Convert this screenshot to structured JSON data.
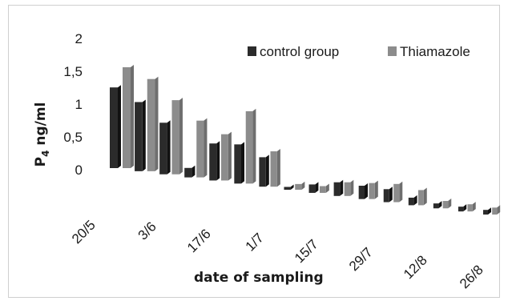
{
  "chart_data": {
    "type": "bar",
    "title": "",
    "xlabel": "date of sampling",
    "ylabel": "P",
    "ylabel_sub": "4",
    "ylabel_unit": " ng/ml",
    "ylim": [
      0,
      2
    ],
    "yticks": [
      "2",
      "1,5",
      "1",
      "0,5",
      "0"
    ],
    "x_tick_labels": [
      "20/5",
      "3/6",
      "17/6",
      "1/7",
      "15/7",
      "29/7",
      "12/8",
      "26/8"
    ],
    "legend_position": "top-right",
    "series": [
      {
        "name": "control group",
        "color": "#2b2b2b",
        "values": [
          1.2,
          1.05,
          0.8,
          0.15,
          0.6,
          0.65,
          0.5,
          0.05,
          0.15,
          0.25,
          0.25,
          0.25,
          0.15,
          0.1,
          0.1,
          0.1
        ]
      },
      {
        "name": "Thiamazole",
        "color": "#8c8c8c",
        "values": [
          1.5,
          1.4,
          1.15,
          0.9,
          0.75,
          1.2,
          0.6,
          0.1,
          0.12,
          0.25,
          0.3,
          0.35,
          0.3,
          0.15,
          0.15,
          0.15
        ]
      }
    ]
  }
}
